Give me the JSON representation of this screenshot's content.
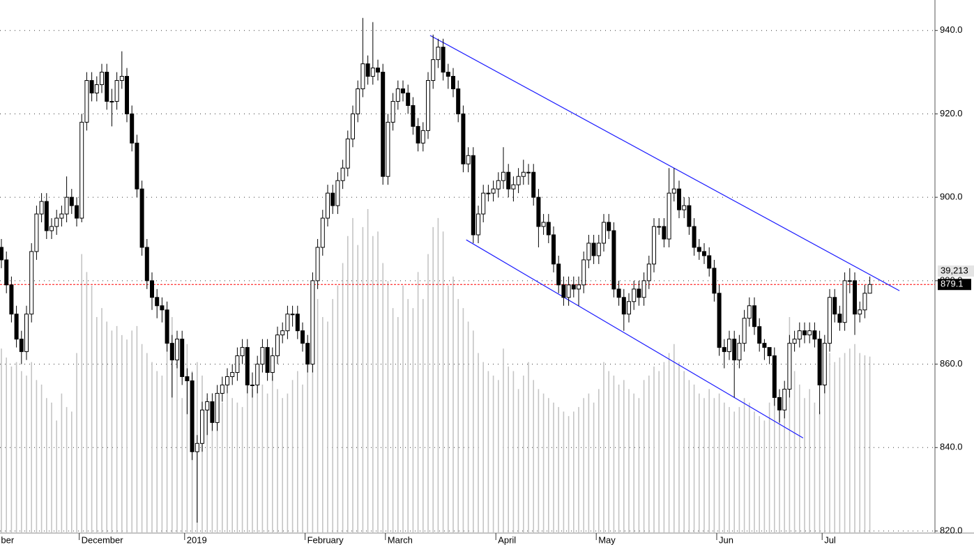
{
  "chart_data": {
    "type": "candlestick",
    "categories": [
      "ber",
      null,
      null,
      null,
      null,
      null,
      null,
      null,
      null,
      null,
      null,
      null,
      null,
      null,
      null,
      null,
      "December",
      null,
      null,
      null,
      null,
      null,
      null,
      null,
      null,
      null,
      null,
      null,
      null,
      null,
      null,
      null,
      null,
      null,
      null,
      null,
      null,
      "2019",
      null,
      null,
      null,
      null,
      null,
      null,
      null,
      null,
      null,
      null,
      null,
      null,
      null,
      null,
      null,
      null,
      null,
      null,
      null,
      null,
      null,
      null,
      null,
      "February",
      null,
      null,
      null,
      null,
      null,
      null,
      null,
      null,
      null,
      null,
      null,
      null,
      null,
      null,
      null,
      "March",
      null,
      null,
      null,
      null,
      null,
      null,
      null,
      null,
      null,
      null,
      null,
      null,
      null,
      null,
      null,
      null,
      null,
      null,
      null,
      null,
      null,
      "April",
      null,
      null,
      null,
      null,
      null,
      null,
      null,
      null,
      null,
      null,
      null,
      null,
      null,
      null,
      null,
      null,
      null,
      null,
      null,
      "May",
      null,
      null,
      null,
      null,
      null,
      null,
      null,
      null,
      null,
      null,
      null,
      null,
      null,
      null,
      null,
      null,
      null,
      null,
      null,
      null,
      null,
      null,
      null,
      "Jun",
      null,
      null,
      null,
      null,
      null,
      null,
      null,
      null,
      null,
      null,
      null,
      null,
      null,
      null,
      null,
      null,
      null,
      null,
      null,
      null,
      "Jul",
      null,
      null,
      null,
      null,
      null,
      null,
      null,
      null,
      null
    ],
    "open": [
      888,
      885,
      879,
      872,
      866,
      863,
      872,
      887,
      896,
      899,
      892,
      893,
      895,
      896,
      900,
      898,
      895,
      918,
      928,
      925,
      927,
      930,
      923,
      923,
      928,
      929,
      920,
      913,
      902,
      888,
      880,
      876,
      874,
      873,
      865,
      861,
      866,
      857,
      856,
      839,
      841,
      849,
      851,
      846,
      853,
      855,
      857,
      858,
      862,
      864,
      855,
      855,
      860,
      864,
      858,
      862,
      867,
      868,
      872,
      872,
      868,
      865,
      860,
      880,
      888,
      895,
      901,
      898,
      904,
      907,
      914,
      920,
      926,
      932,
      929,
      931,
      930,
      905,
      918,
      923,
      926,
      925,
      922,
      917,
      913,
      916,
      928,
      933,
      936,
      930,
      929,
      926,
      920,
      908,
      910,
      891,
      896,
      901,
      901,
      902,
      904,
      906,
      902,
      903,
      905,
      906,
      906,
      900,
      893,
      894,
      891,
      884,
      879,
      876,
      879,
      878,
      879,
      885,
      889,
      886,
      889,
      894,
      892,
      878,
      876,
      872,
      875,
      878,
      876,
      880,
      884,
      893,
      893,
      890,
      901,
      902,
      897,
      898,
      893,
      888,
      887,
      886,
      883,
      877,
      864,
      863,
      866,
      861,
      865,
      871,
      874,
      869,
      865,
      864,
      862,
      852,
      849,
      854,
      865,
      866,
      868,
      867,
      868,
      866,
      855,
      865,
      876,
      872,
      870,
      880,
      880,
      872,
      873,
      877
    ],
    "high": [
      890,
      887,
      881,
      874,
      868,
      874,
      889,
      898,
      901,
      901,
      895,
      897,
      898,
      905,
      902,
      900,
      920,
      930,
      930,
      929,
      932,
      932,
      926,
      930,
      935,
      931,
      922,
      915,
      904,
      890,
      882,
      878,
      876,
      875,
      867,
      868,
      868,
      859,
      858,
      843,
      851,
      853,
      853,
      855,
      857,
      859,
      860,
      864,
      866,
      866,
      858,
      862,
      866,
      866,
      864,
      869,
      870,
      874,
      874,
      874,
      870,
      867,
      882,
      890,
      897,
      903,
      903,
      906,
      909,
      916,
      922,
      928,
      943,
      934,
      942,
      933,
      932,
      920,
      925,
      928,
      928,
      927,
      924,
      919,
      918,
      930,
      939,
      938,
      938,
      932,
      931,
      928,
      922,
      912,
      912,
      898,
      903,
      903,
      904,
      906,
      912,
      908,
      905,
      907,
      909,
      908,
      908,
      902,
      896,
      896,
      893,
      886,
      881,
      881,
      881,
      881,
      887,
      891,
      891,
      891,
      896,
      896,
      894,
      880,
      878,
      877,
      880,
      880,
      882,
      886,
      895,
      895,
      895,
      907,
      907,
      904,
      900,
      900,
      895,
      890,
      889,
      888,
      885,
      879,
      866,
      868,
      868,
      867,
      873,
      876,
      876,
      871,
      866,
      864,
      864,
      854,
      856,
      867,
      868,
      870,
      870,
      870,
      870,
      868,
      867,
      878,
      878,
      874,
      882,
      883,
      882,
      875,
      879,
      881
    ],
    "low": [
      883,
      877,
      870,
      864,
      860,
      861,
      870,
      885,
      894,
      890,
      890,
      891,
      893,
      894,
      896,
      893,
      894,
      916,
      923,
      923,
      925,
      921,
      917,
      921,
      926,
      918,
      911,
      900,
      886,
      878,
      873,
      871,
      870,
      863,
      852,
      859,
      855,
      848,
      837,
      822,
      839,
      843,
      844,
      844,
      851,
      853,
      855,
      856,
      860,
      853,
      852,
      853,
      858,
      856,
      856,
      860,
      865,
      866,
      869,
      866,
      863,
      858,
      858,
      878,
      886,
      893,
      896,
      896,
      902,
      905,
      912,
      918,
      924,
      927,
      927,
      928,
      903,
      903,
      916,
      921,
      923,
      920,
      915,
      911,
      911,
      914,
      926,
      931,
      928,
      926,
      924,
      918,
      906,
      906,
      889,
      889,
      894,
      899,
      899,
      900,
      902,
      900,
      899,
      901,
      903,
      903,
      898,
      888,
      891,
      889,
      882,
      877,
      874,
      874,
      876,
      874,
      877,
      883,
      884,
      884,
      887,
      890,
      876,
      874,
      868,
      870,
      873,
      874,
      874,
      878,
      882,
      891,
      888,
      888,
      899,
      895,
      895,
      891,
      886,
      885,
      884,
      881,
      875,
      862,
      859,
      861,
      852,
      859,
      863,
      869,
      867,
      863,
      861,
      860,
      850,
      846,
      847,
      852,
      863,
      864,
      865,
      865,
      864,
      848,
      853,
      863,
      870,
      868,
      868,
      877,
      867,
      870,
      871,
      877
    ],
    "close": [
      885,
      879,
      872,
      866,
      863,
      872,
      887,
      896,
      899,
      892,
      893,
      895,
      896,
      900,
      898,
      895,
      918,
      928,
      925,
      927,
      930,
      923,
      923,
      928,
      929,
      920,
      913,
      902,
      888,
      880,
      876,
      874,
      873,
      865,
      861,
      866,
      857,
      856,
      839,
      841,
      849,
      851,
      846,
      853,
      855,
      857,
      858,
      862,
      864,
      855,
      855,
      860,
      864,
      858,
      862,
      867,
      868,
      872,
      872,
      868,
      865,
      860,
      880,
      888,
      895,
      901,
      898,
      904,
      907,
      914,
      920,
      926,
      932,
      929,
      931,
      930,
      905,
      918,
      923,
      926,
      925,
      922,
      917,
      913,
      916,
      928,
      933,
      936,
      930,
      929,
      926,
      920,
      908,
      910,
      891,
      896,
      901,
      901,
      902,
      904,
      906,
      902,
      903,
      905,
      906,
      906,
      900,
      893,
      894,
      891,
      884,
      879,
      876,
      879,
      878,
      879,
      885,
      889,
      886,
      889,
      894,
      892,
      878,
      876,
      872,
      875,
      878,
      876,
      880,
      884,
      893,
      893,
      890,
      901,
      902,
      897,
      898,
      893,
      888,
      887,
      886,
      883,
      877,
      864,
      863,
      866,
      861,
      865,
      871,
      874,
      869,
      865,
      864,
      862,
      852,
      849,
      854,
      865,
      866,
      868,
      867,
      868,
      866,
      855,
      865,
      876,
      872,
      870,
      880,
      880,
      872,
      873,
      877,
      879.1
    ],
    "volume": [
      41000,
      39000,
      37000,
      38000,
      36000,
      35000,
      38000,
      34000,
      33000,
      30000,
      29000,
      25000,
      31000,
      28000,
      27000,
      40000,
      62000,
      58000,
      55000,
      48000,
      50000,
      47000,
      45000,
      46000,
      44000,
      43000,
      45000,
      46000,
      42000,
      40000,
      38000,
      36000,
      35000,
      44000,
      48000,
      40000,
      30000,
      42000,
      36000,
      38000,
      35000,
      30000,
      28000,
      27000,
      29000,
      31000,
      30000,
      29000,
      28000,
      33000,
      32000,
      34000,
      33000,
      31000,
      35000,
      32000,
      30000,
      31000,
      34000,
      36000,
      33000,
      40000,
      50000,
      52000,
      48000,
      47000,
      52000,
      55000,
      60000,
      66000,
      70000,
      64000,
      68000,
      72000,
      66000,
      67000,
      60000,
      56000,
      50000,
      48000,
      55000,
      52000,
      50000,
      58000,
      52000,
      62000,
      68000,
      70000,
      67000,
      55000,
      57000,
      52000,
      50000,
      47000,
      45000,
      40000,
      38000,
      36000,
      35000,
      34000,
      41000,
      37000,
      36000,
      32000,
      35000,
      38000,
      34000,
      32000,
      31000,
      30000,
      29000,
      28000,
      27000,
      26000,
      27000,
      28000,
      30000,
      31000,
      29000,
      32000,
      38000,
      36000,
      35000,
      33000,
      34000,
      32000,
      31000,
      30000,
      34000,
      35000,
      37000,
      36000,
      38000,
      40000,
      42000,
      38000,
      36000,
      34000,
      33000,
      31000,
      30000,
      32000,
      30000,
      31000,
      29000,
      28000,
      27000,
      28000,
      30000,
      29000,
      27000,
      26000,
      25000,
      29000,
      30000,
      28000,
      27000,
      48000,
      36000,
      33000,
      30000,
      32000,
      29000,
      27000,
      34000,
      40000,
      38000,
      39000,
      40000,
      41000,
      42000,
      40000,
      39500,
      39213
    ],
    "volume_label": "39,213",
    "last_price": 879.1,
    "trendlines": [
      {
        "x": [
          85.4,
          178.9
        ],
        "y": [
          938.8,
          877.6
        ]
      },
      {
        "x": [
          92.6,
          159.7
        ],
        "y": [
          889.8,
          842.3
        ]
      }
    ],
    "ylim": [
      819.5,
      947.3
    ],
    "yticks": [
      {
        "value": 820,
        "label": "820.0"
      },
      {
        "value": 840,
        "label": "840.0"
      },
      {
        "value": 860,
        "label": "860.0"
      },
      {
        "value": 880,
        "label": "880.0"
      },
      {
        "value": 900,
        "label": "900.0"
      },
      {
        "value": 920,
        "label": "920.0"
      },
      {
        "value": 940,
        "label": "940.0"
      }
    ],
    "grid": true,
    "colors": {
      "up": "#ffffff",
      "down": "#000000",
      "wick": "#000000",
      "volume": "#c4c4c4",
      "trendline": "#1a1aff",
      "price_line": "#ff0000"
    }
  }
}
